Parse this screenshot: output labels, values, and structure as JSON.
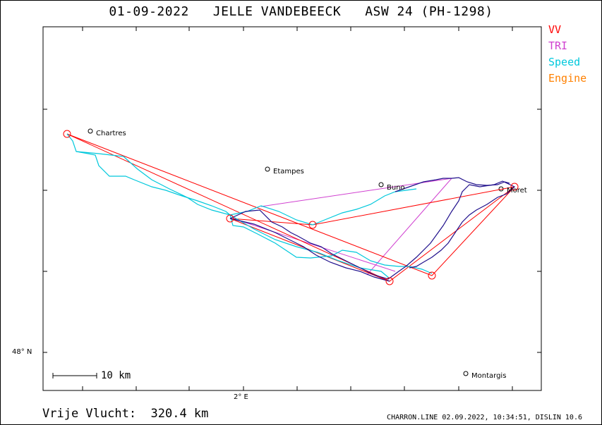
{
  "title": "01-09-2022   JELLE VANDEBEECK   ASW 24 (PH-1298)",
  "legend": [
    {
      "label": "VV",
      "color": "#ff0000"
    },
    {
      "label": "TRI",
      "color": "#d040d0"
    },
    {
      "label": "Speed",
      "color": "#00c8dc"
    },
    {
      "label": "Engine",
      "color": "#ff8000"
    }
  ],
  "places": [
    "Chartres",
    "Etampes",
    "Buno",
    "Moret",
    "Montargis"
  ],
  "axis": {
    "lat_label": "48° N",
    "lon_label": "2° E"
  },
  "scale": {
    "label": "10 km"
  },
  "distance": "Vrije Vlucht:  320.4 km",
  "footer": "CHARRON.LINE 02.09.2022, 10:34:51, DISLIN 10.6",
  "colors": {
    "track_dark": "#20108c",
    "track_speed": "#00c8dc",
    "vv": "#ff0000",
    "tri": "#d040d0"
  }
}
